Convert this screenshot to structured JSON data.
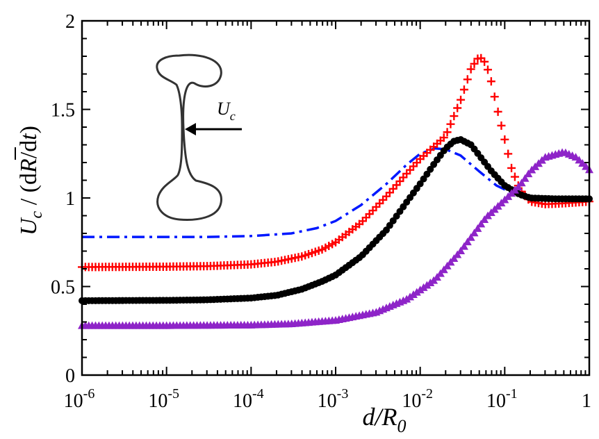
{
  "chart_data": {
    "type": "scatter",
    "xscale": "log",
    "xlim": [
      1e-06,
      1
    ],
    "ylim": [
      0,
      2
    ],
    "xlabel": "d/R0",
    "ylabel": "Uc / (dR/dt)",
    "x_ticks": [
      {
        "value": 1e-06,
        "base": "10",
        "exp": "-6"
      },
      {
        "value": 1e-05,
        "base": "10",
        "exp": "-5"
      },
      {
        "value": 0.0001,
        "base": "10",
        "exp": "-4"
      },
      {
        "value": 0.001,
        "base": "10",
        "exp": "-3"
      },
      {
        "value": 0.01,
        "base": "10",
        "exp": "-2"
      },
      {
        "value": 0.1,
        "base": "10",
        "exp": "-1"
      },
      {
        "value": 1,
        "base": "1",
        "exp": ""
      }
    ],
    "y_ticks": [
      {
        "value": 0,
        "label": "0"
      },
      {
        "value": 0.5,
        "label": "0.5"
      },
      {
        "value": 1,
        "label": "1"
      },
      {
        "value": 1.5,
        "label": "1.5"
      },
      {
        "value": 2,
        "label": "2"
      }
    ],
    "series": [
      {
        "name": "dash-dot (blue)",
        "style": "dashdot",
        "color": "#0018ff",
        "points": [
          [
            1e-06,
            0.78
          ],
          [
            3e-06,
            0.78
          ],
          [
            1e-05,
            0.78
          ],
          [
            3e-05,
            0.78
          ],
          [
            0.0001,
            0.785
          ],
          [
            0.0003,
            0.8
          ],
          [
            0.0006,
            0.83
          ],
          [
            0.001,
            0.87
          ],
          [
            0.002,
            0.96
          ],
          [
            0.004,
            1.08
          ],
          [
            0.007,
            1.19
          ],
          [
            0.01,
            1.25
          ],
          [
            0.015,
            1.28
          ],
          [
            0.02,
            1.275
          ],
          [
            0.03,
            1.24
          ],
          [
            0.05,
            1.15
          ],
          [
            0.08,
            1.07
          ],
          [
            0.12,
            1.03
          ],
          [
            0.2,
            1.01
          ],
          [
            0.4,
            1.0
          ],
          [
            1,
            1.0
          ]
        ]
      },
      {
        "name": "plus markers (red)",
        "style": "marker-plus",
        "color": "#ff0000",
        "points": [
          [
            1e-06,
            0.61
          ],
          [
            1e-05,
            0.612
          ],
          [
            3e-05,
            0.615
          ],
          [
            0.0001,
            0.625
          ],
          [
            0.0002,
            0.64
          ],
          [
            0.0004,
            0.67
          ],
          [
            0.0007,
            0.71
          ],
          [
            0.001,
            0.75
          ],
          [
            0.002,
            0.86
          ],
          [
            0.004,
            1.01
          ],
          [
            0.007,
            1.14
          ],
          [
            0.01,
            1.22
          ],
          [
            0.02,
            1.35
          ],
          [
            0.03,
            1.55
          ],
          [
            0.04,
            1.73
          ],
          [
            0.05,
            1.8
          ],
          [
            0.06,
            1.76
          ],
          [
            0.07,
            1.65
          ],
          [
            0.08,
            1.52
          ],
          [
            0.1,
            1.33
          ],
          [
            0.12,
            1.17
          ],
          [
            0.15,
            1.05
          ],
          [
            0.2,
            0.98
          ],
          [
            0.3,
            0.965
          ],
          [
            0.5,
            0.97
          ],
          [
            1,
            0.98
          ]
        ]
      },
      {
        "name": "circle markers (black)",
        "style": "marker-circle",
        "color": "#000000",
        "points": [
          [
            1e-06,
            0.42
          ],
          [
            1e-05,
            0.422
          ],
          [
            3e-05,
            0.425
          ],
          [
            0.0001,
            0.435
          ],
          [
            0.0002,
            0.45
          ],
          [
            0.0004,
            0.485
          ],
          [
            0.0007,
            0.53
          ],
          [
            0.001,
            0.565
          ],
          [
            0.002,
            0.67
          ],
          [
            0.004,
            0.82
          ],
          [
            0.007,
            0.98
          ],
          [
            0.01,
            1.08
          ],
          [
            0.015,
            1.2
          ],
          [
            0.02,
            1.28
          ],
          [
            0.025,
            1.32
          ],
          [
            0.03,
            1.33
          ],
          [
            0.04,
            1.3
          ],
          [
            0.05,
            1.24
          ],
          [
            0.07,
            1.15
          ],
          [
            0.1,
            1.07
          ],
          [
            0.15,
            1.02
          ],
          [
            0.2,
            1.0
          ],
          [
            0.4,
            0.995
          ],
          [
            1,
            0.995
          ]
        ]
      },
      {
        "name": "triangle markers (purple)",
        "style": "marker-triangle",
        "color": "#8e24c8",
        "points": [
          [
            1e-06,
            0.28
          ],
          [
            1e-05,
            0.28
          ],
          [
            0.0001,
            0.283
          ],
          [
            0.0003,
            0.29
          ],
          [
            0.001,
            0.31
          ],
          [
            0.003,
            0.355
          ],
          [
            0.007,
            0.43
          ],
          [
            0.015,
            0.54
          ],
          [
            0.03,
            0.7
          ],
          [
            0.06,
            0.89
          ],
          [
            0.1,
            0.99
          ],
          [
            0.15,
            1.07
          ],
          [
            0.2,
            1.15
          ],
          [
            0.3,
            1.23
          ],
          [
            0.5,
            1.26
          ],
          [
            0.7,
            1.23
          ],
          [
            1,
            1.16
          ]
        ]
      }
    ],
    "inset": {
      "label_base": "U",
      "label_sub": "c"
    }
  }
}
